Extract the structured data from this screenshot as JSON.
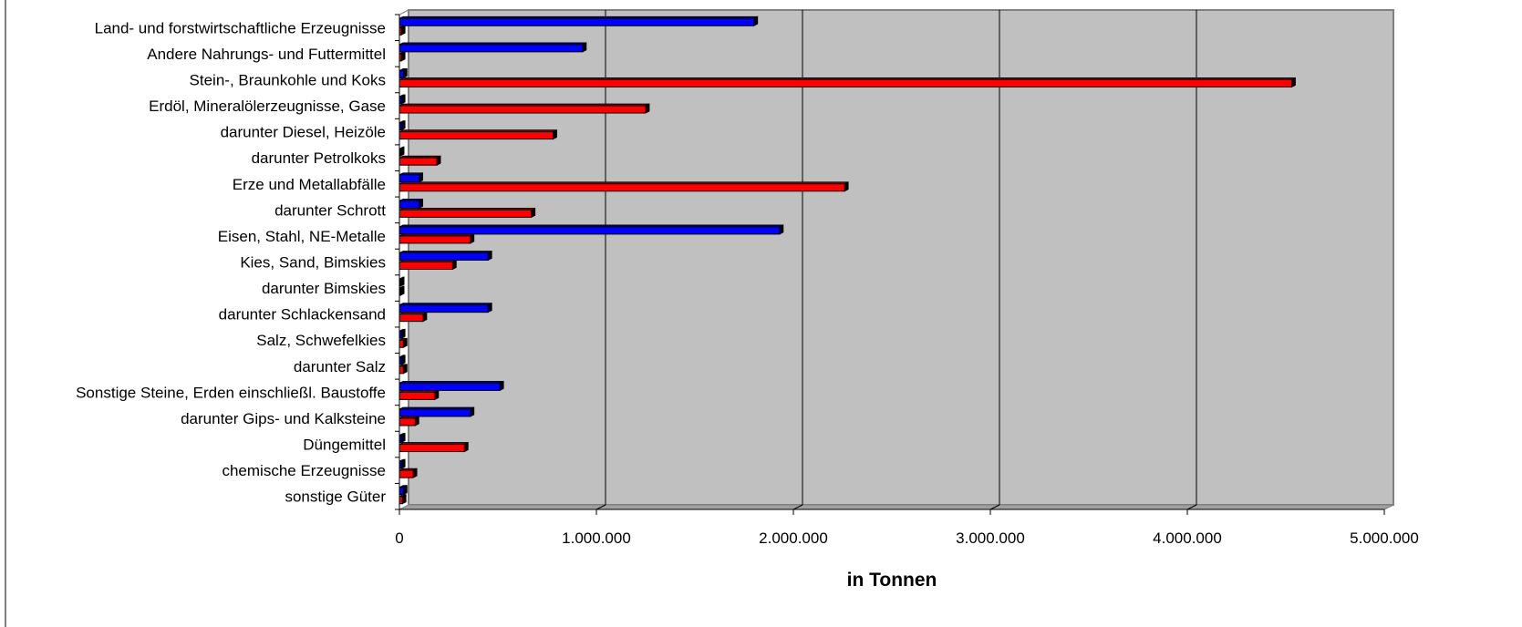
{
  "chart_data": {
    "type": "bar",
    "orientation": "horizontal",
    "style": "3d-clustered",
    "xlabel": "in Tonnen",
    "ylabel": "",
    "xlim": [
      0,
      5000000
    ],
    "x_ticks": [
      0,
      1000000,
      2000000,
      3000000,
      4000000,
      5000000
    ],
    "x_tick_labels": [
      "0",
      "1.000.000",
      "2.000.000",
      "3.000.000",
      "4.000.000",
      "5.000.000"
    ],
    "grid": true,
    "legend": "none",
    "categories": [
      "Land- und forstwirtschaftliche Erzeugnisse",
      "Andere Nahrungs- und Futtermittel",
      "Stein-, Braunkohle und Koks",
      "Erdöl, Mineralölerzeugnisse, Gase",
      "darunter Diesel, Heizöle",
      "darunter Petrolkoks",
      "Erze und Metallabfälle",
      "darunter Schrott",
      "Eisen, Stahl, NE-Metalle",
      "Kies, Sand, Bimskies",
      "darunter Bimskies",
      "darunter Schlackensand",
      "Salz, Schwefelkies",
      "darunter Salz",
      "Sonstige Steine, Erden einschließl. Baustoffe",
      "darunter Gips- und Kalksteine",
      "Düngemittel",
      "chemische Erzeugnisse",
      "sonstige Güter"
    ],
    "series": [
      {
        "color": "#0000ff",
        "values": [
          1800000,
          930000,
          20000,
          10000,
          10000,
          5000,
          100000,
          100000,
          1930000,
          450000,
          5000,
          450000,
          10000,
          10000,
          510000,
          360000,
          10000,
          10000,
          20000
        ]
      },
      {
        "color": "#ff0000",
        "values": [
          10000,
          10000,
          4530000,
          1250000,
          780000,
          190000,
          2260000,
          670000,
          360000,
          270000,
          5000,
          120000,
          20000,
          20000,
          180000,
          80000,
          330000,
          70000,
          15000
        ]
      }
    ]
  },
  "colors": {
    "plot_background": "#c0c0c0",
    "gridline": "#000000",
    "bar_shadow": "#000000"
  }
}
